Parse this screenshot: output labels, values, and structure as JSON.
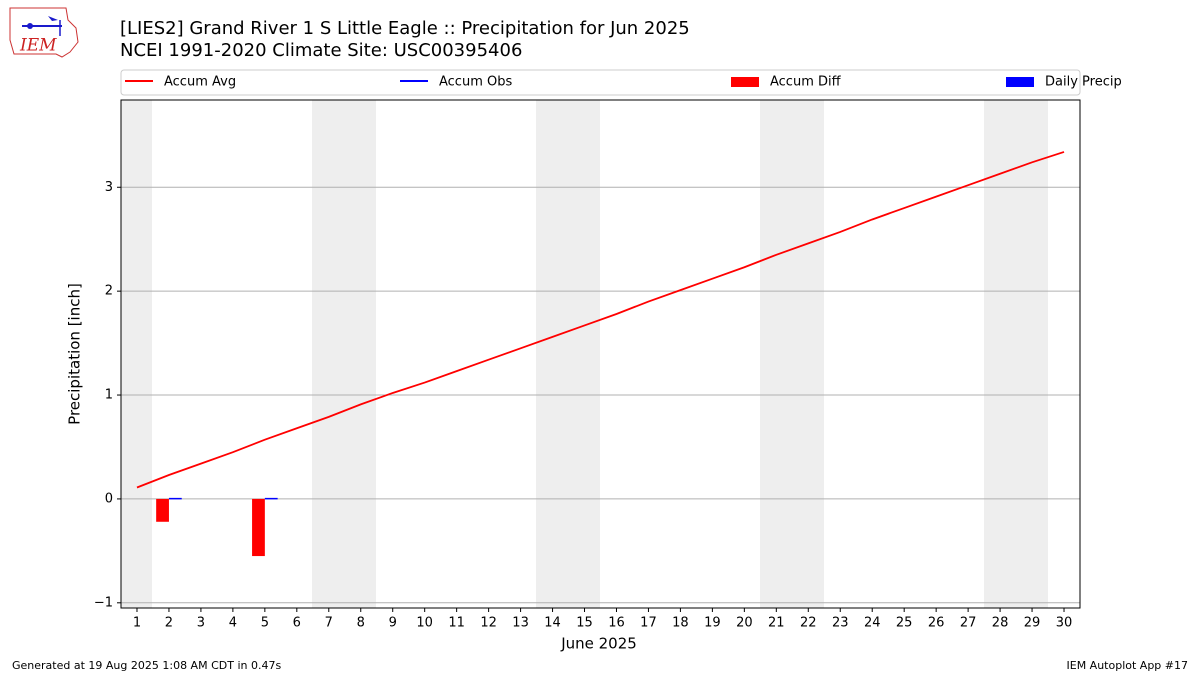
{
  "chart_data": {
    "type": "line",
    "title": "[LIES2] Grand River 1 S Little Eagle :: Precipitation for Jun 2025",
    "subtitle": "NCEI 1991-2020 Climate Site: USC00395406",
    "logo_text": "IEM",
    "xlabel": "June 2025",
    "ylabel": "Precipitation [inch]",
    "footer_left": "Generated at 19 Aug 2025 1:08 AM CDT in 0.47s",
    "footer_right": "IEM Autoplot App #17",
    "x": [
      1,
      2,
      3,
      4,
      5,
      6,
      7,
      8,
      9,
      10,
      11,
      12,
      13,
      14,
      15,
      16,
      17,
      18,
      19,
      20,
      21,
      22,
      23,
      24,
      25,
      26,
      27,
      28,
      29,
      30
    ],
    "xlim": [
      0.5,
      30.5
    ],
    "xticks": [
      1,
      2,
      3,
      4,
      5,
      6,
      7,
      8,
      9,
      10,
      11,
      12,
      13,
      14,
      15,
      16,
      17,
      18,
      19,
      20,
      21,
      22,
      23,
      24,
      25,
      26,
      27,
      28,
      29,
      30
    ],
    "ylim": [
      -1.05,
      3.84
    ],
    "yticks": [
      {
        "value": -1,
        "label": "−1"
      },
      0,
      1,
      2,
      3
    ],
    "grid": true,
    "series": [
      {
        "name": "Accum Avg",
        "kind": "line",
        "color": "#ff0000",
        "values": [
          0.11,
          0.23,
          0.34,
          0.45,
          0.57,
          0.68,
          0.79,
          0.91,
          1.02,
          1.12,
          1.23,
          1.34,
          1.45,
          1.56,
          1.67,
          1.78,
          1.9,
          2.01,
          2.12,
          2.23,
          2.35,
          2.46,
          2.57,
          2.69,
          2.8,
          2.91,
          3.02,
          3.13,
          3.24,
          3.34
        ]
      },
      {
        "name": "Accum Obs",
        "kind": "line",
        "color": "#0000ff",
        "values": [
          null,
          0.01,
          null,
          null,
          0.02,
          null,
          null,
          null,
          null,
          null,
          null,
          null,
          null,
          null,
          null,
          null,
          null,
          null,
          null,
          null,
          null,
          null,
          null,
          null,
          null,
          null,
          null,
          null,
          null,
          null
        ]
      },
      {
        "name": "Accum Diff",
        "kind": "bar",
        "offset": "left",
        "color": "#ff0000",
        "values": [
          null,
          -0.22,
          null,
          null,
          -0.55,
          null,
          null,
          null,
          null,
          null,
          null,
          null,
          null,
          null,
          null,
          null,
          null,
          null,
          null,
          null,
          null,
          null,
          null,
          null,
          null,
          null,
          null,
          null,
          null,
          null
        ]
      },
      {
        "name": "Daily Precip",
        "kind": "bar",
        "offset": "right",
        "color": "#0000ff",
        "values": [
          null,
          0.01,
          null,
          null,
          0.01,
          null,
          null,
          null,
          null,
          null,
          null,
          null,
          null,
          null,
          null,
          null,
          null,
          null,
          null,
          null,
          null,
          null,
          null,
          null,
          null,
          null,
          null,
          null,
          null,
          null
        ]
      }
    ]
  }
}
